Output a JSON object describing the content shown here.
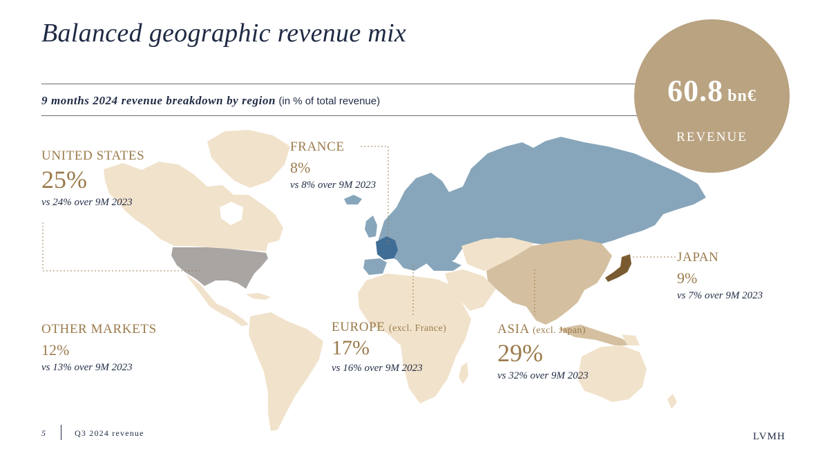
{
  "slide": {
    "title": "Balanced geographic revenue mix",
    "subtitle_bold": "9 months 2024 revenue breakdown by region",
    "subtitle_note": "(in % of total revenue)"
  },
  "badge": {
    "value": "60.8",
    "unit": "bn€",
    "label": "REVENUE"
  },
  "colors": {
    "other_markets": "#f1e2cb",
    "united_states": "#a9a5a3",
    "europe": "#88a6bb",
    "france": "#3f6d96",
    "asia": "#d4c0a0",
    "japan": "#7a5a30",
    "accent": "#9b7b4c",
    "navy": "#1f2a44",
    "badge": "#b9a381"
  },
  "regions": {
    "united_states": {
      "name": "UNITED STATES",
      "pct": "25%",
      "cmp": "vs 24% over 9M 2023"
    },
    "france": {
      "name": "FRANCE",
      "pct": "8%",
      "cmp": "vs 8% over 9M 2023"
    },
    "japan": {
      "name": "JAPAN",
      "pct": "9%",
      "cmp": "vs 7% over 9M 2023"
    },
    "other_markets": {
      "name": "OTHER MARKETS",
      "pct": "12%",
      "cmp": "vs 13% over 9M 2023"
    },
    "europe": {
      "name": "EUROPE",
      "qualifier": "(excl. France)",
      "pct": "17%",
      "cmp": "vs 16% over 9M 2023"
    },
    "asia": {
      "name": "ASIA",
      "qualifier": "(excl. Japan)",
      "pct": "29%",
      "cmp": "vs 32% over 9M 2023"
    }
  },
  "footer": {
    "page_number": "5",
    "text": "Q3 2024 revenue",
    "logo": "LVMH"
  }
}
